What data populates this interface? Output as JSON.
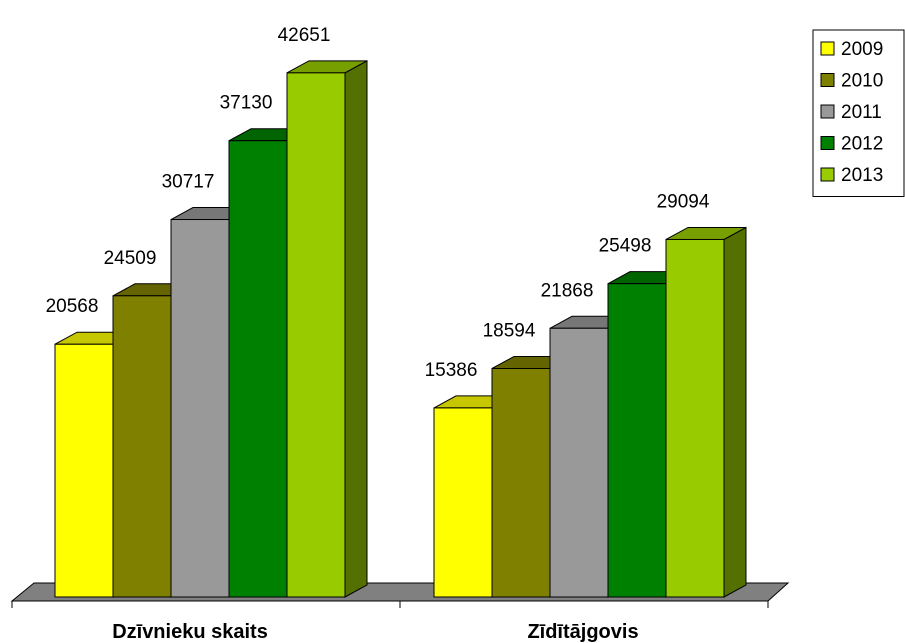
{
  "chart_data": {
    "type": "bar",
    "style": "3d-clustered-column",
    "categories": [
      "Dzīvnieku skaits",
      "Zīdītājgovis"
    ],
    "series": [
      {
        "name": "2009",
        "color": "#ffff00",
        "values": [
          20568,
          15386
        ]
      },
      {
        "name": "2010",
        "color": "#808000",
        "values": [
          24509,
          18594
        ]
      },
      {
        "name": "2011",
        "color": "#999999",
        "values": [
          30717,
          21868
        ]
      },
      {
        "name": "2012",
        "color": "#008000",
        "values": [
          37130,
          25498
        ]
      },
      {
        "name": "2013",
        "color": "#99cc00",
        "values": [
          42651,
          29094
        ]
      }
    ],
    "title": "",
    "xlabel": "",
    "ylabel": "",
    "ylim": [
      0,
      45000
    ],
    "grid": false,
    "legend": "top-right"
  }
}
